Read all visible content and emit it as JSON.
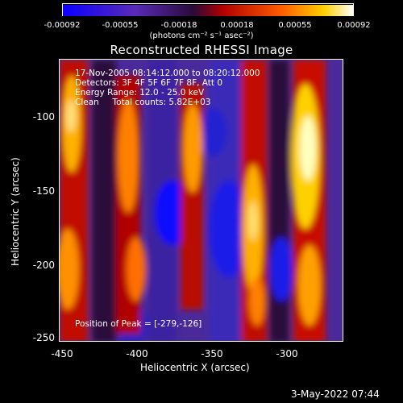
{
  "colorbar": {
    "ticks": [
      "-0.00092",
      "-0.00055",
      "-0.00018",
      "0.00018",
      "0.00055",
      "0.00092"
    ],
    "unit_label": "(photons cm⁻² s⁻¹ asec⁻²)"
  },
  "image": {
    "title": "Reconstructed RHESSI Image",
    "info_lines": [
      "17-Nov-2005 08:14:12.000 to 08:20:12.000",
      "Detectors: 3F 4F 5F 6F 7F 8F, Att 0",
      "Energy Range: 12.0 - 25.0 keV",
      "Clean     Total counts: 5.82E+03"
    ],
    "peak_label": "Position of Peak = [-279,-126]"
  },
  "axes": {
    "xlabel": "Heliocentric X (arcsec)",
    "ylabel": "Heliocentric Y (arcsec)",
    "xticks": [
      "-450",
      "-400",
      "-350",
      "-300"
    ],
    "yticks": [
      "-100",
      "-150",
      "-200",
      "-250"
    ]
  },
  "footer": {
    "date": "3-May-2022 07:44"
  },
  "colors": {
    "low": "#0000ff",
    "mid": "#ff0000",
    "high": "#ffffff",
    "background": "#000000"
  }
}
